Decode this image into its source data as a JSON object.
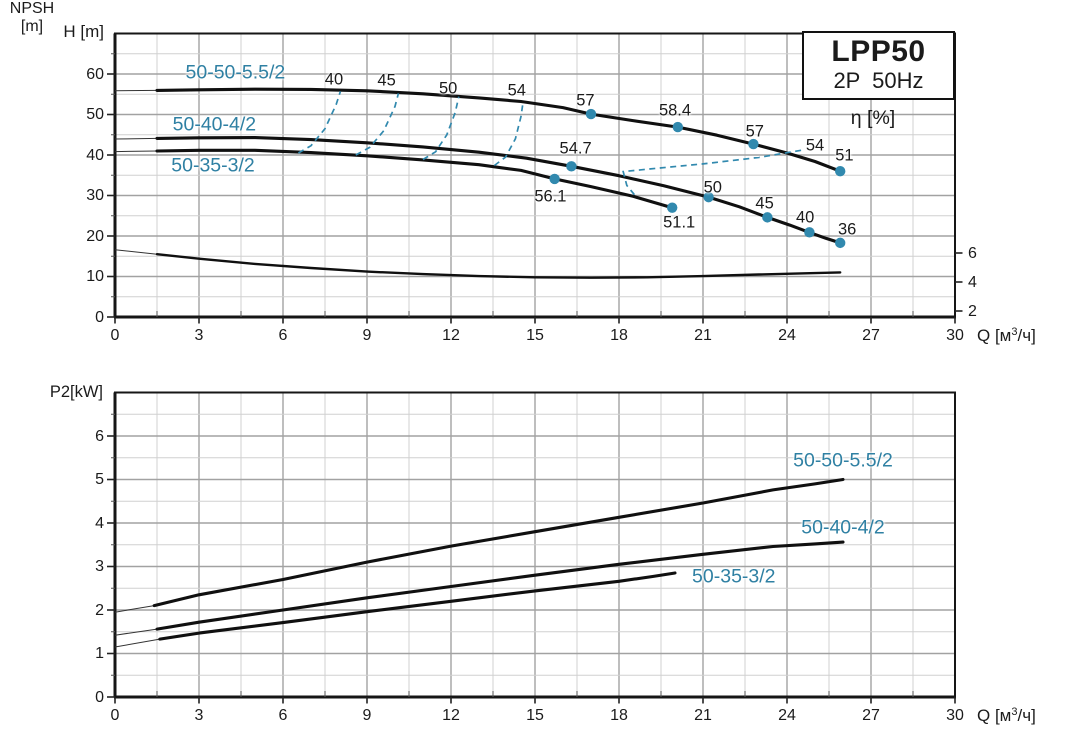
{
  "colors": {
    "accent_teal": "#3189ae",
    "label_teal": "#2f80a3",
    "curve_black": "#101010",
    "grid_minor": "#d0d0d0",
    "grid_major": "#a2a2a2",
    "frame": "#161616"
  },
  "title_box": {
    "model": "LPP50",
    "spec": "2P  50Hz"
  },
  "axis_labels": {
    "h_axis": "H [m]",
    "p2_axis": "P2[kW]",
    "eta": "η [%]",
    "npsh_line1": "NPSH",
    "npsh_line2": "[m]",
    "q_pre": "Q [м",
    "q_sup": "3",
    "q_suf": "/ч]"
  },
  "chart_data": [
    {
      "id": "hq-chart",
      "type": "line",
      "title": "LPP50 2P 50Hz head-capacity curves with efficiency contours and NPSH",
      "xlabel": "Q [м³/ч]",
      "ylabel": "H [m]",
      "xlim": [
        0,
        30
      ],
      "ylim": [
        0,
        70
      ],
      "x_ticks": [
        0,
        3,
        6,
        9,
        12,
        15,
        18,
        21,
        24,
        27,
        30
      ],
      "y_ticks": [
        0,
        10,
        20,
        30,
        40,
        50,
        60
      ],
      "x_minor_step": 1.5,
      "y_minor_step": 5,
      "y_major_step": 10,
      "secondary_y": {
        "label": "NPSH",
        "unit": "[m]",
        "ticks": [
          2,
          4,
          6
        ]
      },
      "series": [
        {
          "name": "50-50-5.5/2",
          "leader": [
            [
              0,
              55.85
            ],
            [
              1.5,
              55.95
            ]
          ],
          "points": [
            [
              1.5,
              55.95
            ],
            [
              3,
              56.1
            ],
            [
              5,
              56.25
            ],
            [
              7,
              56.2
            ],
            [
              9,
              55.85
            ],
            [
              11,
              55.1
            ],
            [
              13,
              54.1
            ],
            [
              14.5,
              53.2
            ],
            [
              16,
              51.7
            ],
            [
              17,
              50.1
            ],
            [
              18.5,
              48.5
            ],
            [
              20.1,
              46.9
            ],
            [
              21.5,
              44.9
            ],
            [
              22.8,
              42.7
            ],
            [
              24,
              40.5
            ],
            [
              25,
              38.4
            ],
            [
              25.9,
              36.0
            ]
          ]
        },
        {
          "name": "50-40-4/2",
          "leader": [
            [
              0,
              43.95
            ],
            [
              1.5,
              44.1
            ]
          ],
          "points": [
            [
              1.5,
              44.1
            ],
            [
              3,
              44.25
            ],
            [
              5,
              44.3
            ],
            [
              7,
              43.8
            ],
            [
              9,
              43.0
            ],
            [
              11,
              42.0
            ],
            [
              13,
              40.7
            ],
            [
              14.7,
              39.2
            ],
            [
              16.3,
              37.2
            ],
            [
              18,
              34.9
            ],
            [
              19.6,
              32.4
            ],
            [
              21.2,
              29.6
            ],
            [
              22.3,
              27.2
            ],
            [
              23.3,
              24.6
            ],
            [
              24.1,
              22.7
            ],
            [
              24.8,
              20.9
            ],
            [
              25.4,
              19.4
            ],
            [
              25.9,
              18.3
            ]
          ]
        },
        {
          "name": "50-35-3/2",
          "leader": [
            [
              0,
              40.85
            ],
            [
              1.5,
              41.0
            ]
          ],
          "points": [
            [
              1.5,
              41.0
            ],
            [
              3,
              41.15
            ],
            [
              5,
              41.15
            ],
            [
              7,
              40.6
            ],
            [
              9,
              39.8
            ],
            [
              11,
              38.8
            ],
            [
              13,
              37.6
            ],
            [
              14.5,
              36.2
            ],
            [
              15.7,
              34.1
            ],
            [
              17,
              32.2
            ],
            [
              18.5,
              29.8
            ],
            [
              19.9,
              27.0
            ]
          ]
        },
        {
          "name": "NPSH",
          "leader": [
            [
              0,
              16.6
            ],
            [
              1.5,
              15.5
            ]
          ],
          "points": [
            [
              1.5,
              15.5
            ],
            [
              3,
              14.4
            ],
            [
              5,
              13.1
            ],
            [
              7,
              12.1
            ],
            [
              9,
              11.2
            ],
            [
              11,
              10.6
            ],
            [
              13,
              10.1
            ],
            [
              15,
              9.8
            ],
            [
              17,
              9.7
            ],
            [
              19,
              9.8
            ],
            [
              21,
              10.1
            ],
            [
              23,
              10.5
            ],
            [
              25,
              10.85
            ],
            [
              25.9,
              11.0
            ]
          ]
        }
      ],
      "efficiency_contours": [
        {
          "label": "40",
          "points": [
            [
              6.55,
              40.5
            ],
            [
              7.0,
              42.3
            ],
            [
              7.5,
              46.5
            ],
            [
              7.9,
              52.5
            ],
            [
              8.05,
              55.7
            ]
          ]
        },
        {
          "label": "45",
          "points": [
            [
              8.6,
              40.0
            ],
            [
              9.1,
              41.9
            ],
            [
              9.6,
              46.0
            ],
            [
              10.0,
              52.0
            ],
            [
              10.12,
              55.2
            ]
          ]
        },
        {
          "label": "50",
          "points": [
            [
              11.0,
              38.9
            ],
            [
              11.45,
              40.8
            ],
            [
              11.85,
              45.0
            ],
            [
              12.15,
              50.5
            ],
            [
              12.28,
              54.4
            ]
          ]
        },
        {
          "label": "54",
          "points": [
            [
              13.55,
              37.4
            ],
            [
              13.95,
              39.5
            ],
            [
              14.3,
              44.0
            ],
            [
              14.5,
              49.5
            ],
            [
              14.58,
              53.3
            ]
          ]
        },
        {
          "label": "54",
          "points": [
            [
              18.55,
              30.2
            ],
            [
              18.28,
              32.5
            ],
            [
              18.15,
              35.9
            ],
            [
              19.3,
              36.7
            ],
            [
              21.0,
              37.8
            ],
            [
              23.0,
              39.4
            ],
            [
              24.55,
              41.2
            ]
          ]
        }
      ],
      "efficiency_markers": [
        [
          17.0,
          50.1
        ],
        [
          20.1,
          46.9
        ],
        [
          22.8,
          42.7
        ],
        [
          25.9,
          36.0
        ],
        [
          16.3,
          37.2
        ],
        [
          21.2,
          29.6
        ],
        [
          23.3,
          24.6
        ],
        [
          24.8,
          20.9
        ],
        [
          25.9,
          18.3
        ],
        [
          15.7,
          34.1
        ],
        [
          19.9,
          27.0
        ]
      ],
      "labels": [
        {
          "text": "50-50-5.5/2",
          "q": 4.3,
          "h": 60.2,
          "cls": "model"
        },
        {
          "text": "50-40-4/2",
          "q": 3.55,
          "h": 47.3,
          "cls": "model"
        },
        {
          "text": "50-35-3/2",
          "q": 3.5,
          "h": 37.4,
          "cls": "model"
        },
        {
          "text": "40",
          "q": 7.82,
          "h": 58.4,
          "cls": "eff"
        },
        {
          "text": "45",
          "q": 9.7,
          "h": 58.2,
          "cls": "eff"
        },
        {
          "text": "50",
          "q": 11.9,
          "h": 56.4,
          "cls": "eff"
        },
        {
          "text": "54",
          "q": 14.35,
          "h": 55.8,
          "cls": "eff"
        },
        {
          "text": "57",
          "q": 16.8,
          "h": 53.4,
          "cls": "eff"
        },
        {
          "text": "58.4",
          "q": 20.0,
          "h": 50.9,
          "cls": "eff"
        },
        {
          "text": "57",
          "q": 22.85,
          "h": 45.8,
          "cls": "eff"
        },
        {
          "text": "54",
          "q": 25.0,
          "h": 42.1,
          "cls": "eff"
        },
        {
          "text": "51",
          "q": 26.05,
          "h": 39.8,
          "cls": "eff"
        },
        {
          "text": "54.7",
          "q": 16.45,
          "h": 41.4,
          "cls": "eff"
        },
        {
          "text": "56.1",
          "q": 15.55,
          "h": 29.6,
          "cls": "eff"
        },
        {
          "text": "50",
          "q": 21.35,
          "h": 31.9,
          "cls": "eff"
        },
        {
          "text": "45",
          "q": 23.2,
          "h": 27.9,
          "cls": "eff"
        },
        {
          "text": "40",
          "q": 24.65,
          "h": 24.4,
          "cls": "eff"
        },
        {
          "text": "36",
          "q": 26.15,
          "h": 21.4,
          "cls": "eff"
        },
        {
          "text": "51.1",
          "q": 20.15,
          "h": 23.2,
          "cls": "eff"
        }
      ]
    },
    {
      "id": "p2q-chart",
      "type": "line",
      "title": "P2 shaft power vs capacity",
      "xlabel": "Q [м³/ч]",
      "ylabel": "P2[kW]",
      "xlim": [
        0,
        30
      ],
      "ylim": [
        0,
        7
      ],
      "x_ticks": [
        0,
        3,
        6,
        9,
        12,
        15,
        18,
        21,
        24,
        27,
        30
      ],
      "y_ticks": [
        0,
        1,
        2,
        3,
        4,
        5,
        6
      ],
      "x_minor_step": 1.5,
      "y_minor_step": 0.5,
      "y_major_step": 1,
      "series": [
        {
          "name": "50-50-5.5/2",
          "leader": [
            [
              0,
              1.95
            ],
            [
              1.4,
              2.1
            ]
          ],
          "points": [
            [
              1.4,
              2.1
            ],
            [
              3,
              2.35
            ],
            [
              6,
              2.7
            ],
            [
              9,
              3.1
            ],
            [
              12,
              3.47
            ],
            [
              15,
              3.8
            ],
            [
              18,
              4.13
            ],
            [
              21,
              4.46
            ],
            [
              23.5,
              4.76
            ],
            [
              25,
              4.9
            ],
            [
              26,
              5.0
            ]
          ]
        },
        {
          "name": "50-40-4/2",
          "leader": [
            [
              0,
              1.42
            ],
            [
              1.5,
              1.56
            ]
          ],
          "points": [
            [
              1.5,
              1.56
            ],
            [
              3,
              1.72
            ],
            [
              6,
              2.0
            ],
            [
              9,
              2.28
            ],
            [
              12,
              2.54
            ],
            [
              15,
              2.8
            ],
            [
              18,
              3.05
            ],
            [
              21,
              3.28
            ],
            [
              23.5,
              3.46
            ],
            [
              25,
              3.52
            ],
            [
              26,
              3.56
            ]
          ]
        },
        {
          "name": "50-35-3/2",
          "leader": [
            [
              0,
              1.15
            ],
            [
              1.6,
              1.33
            ]
          ],
          "points": [
            [
              1.6,
              1.33
            ],
            [
              3,
              1.47
            ],
            [
              6,
              1.71
            ],
            [
              9,
              1.96
            ],
            [
              12,
              2.2
            ],
            [
              15,
              2.44
            ],
            [
              18,
              2.66
            ],
            [
              19.2,
              2.77
            ],
            [
              20,
              2.85
            ]
          ]
        }
      ],
      "efficiency_contours": [],
      "efficiency_markers": [],
      "labels": [
        {
          "text": "50-50-5.5/2",
          "q": 26.0,
          "h": 5.42,
          "cls": "model"
        },
        {
          "text": "50-40-4/2",
          "q": 26.0,
          "h": 3.88,
          "cls": "model"
        },
        {
          "text": "50-35-3/2",
          "q": 22.1,
          "h": 2.77,
          "cls": "model"
        }
      ]
    }
  ]
}
